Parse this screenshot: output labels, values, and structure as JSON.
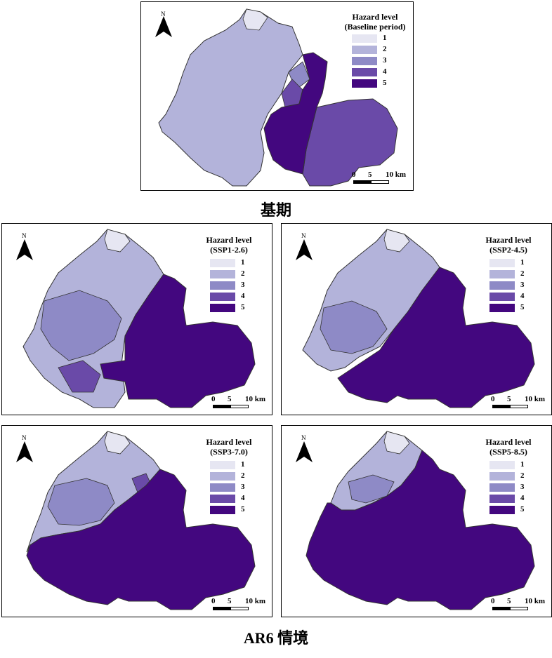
{
  "colors": {
    "level1": "#e6e6f2",
    "level2": "#b3b3da",
    "level3": "#8e8ac6",
    "level4": "#6a4aa8",
    "level5": "#43077f"
  },
  "legend": {
    "title": "Hazard level",
    "levels": [
      "1",
      "2",
      "3",
      "4",
      "5"
    ]
  },
  "north_label": "N",
  "scale": {
    "zero": "0",
    "mid": "5",
    "end": "10 km"
  },
  "captions": {
    "baseline": "基期",
    "ar6": "AR6 情境"
  },
  "panels": [
    {
      "id": "baseline",
      "subtitle": "(Baseline period)"
    },
    {
      "id": "ssp126",
      "subtitle": "(SSP1-2.6)"
    },
    {
      "id": "ssp245",
      "subtitle": "(SSP2-4.5)"
    },
    {
      "id": "ssp370",
      "subtitle": "(SSP3-7.0)"
    },
    {
      "id": "ssp585",
      "subtitle": "(SSP5-8.5)"
    }
  ]
}
